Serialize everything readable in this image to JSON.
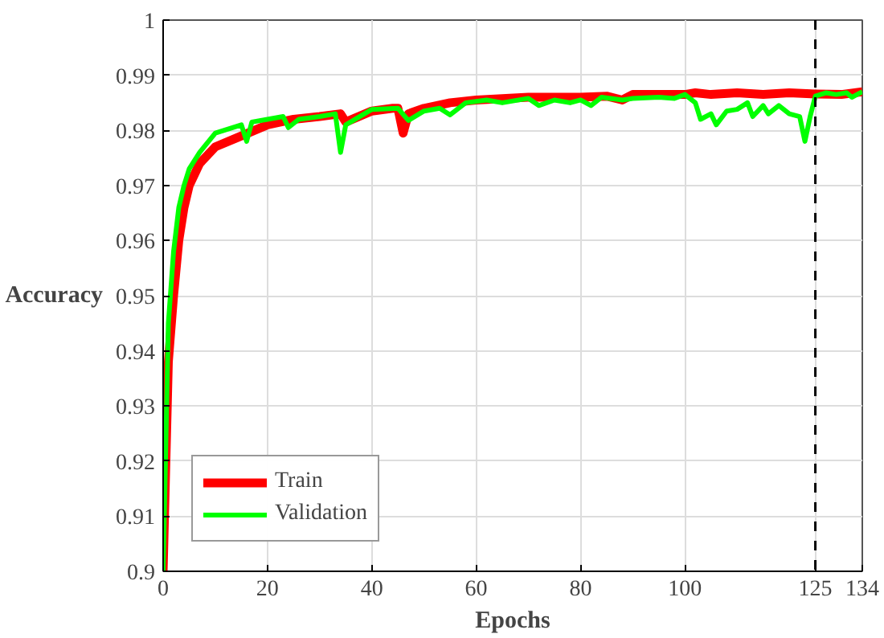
{
  "chart_data": {
    "type": "line",
    "xlabel": "Epochs",
    "ylabel": "Accuracy",
    "xlim": [
      0,
      134
    ],
    "xticks": [
      0,
      20,
      40,
      60,
      80,
      100,
      125,
      134
    ],
    "ylim": [
      0.9,
      1
    ],
    "yticks": [
      0.9,
      0.91,
      0.92,
      0.93,
      0.94,
      0.95,
      0.96,
      0.97,
      0.98,
      0.99,
      1
    ],
    "grid": true,
    "legend": "bottom left",
    "line_style": "solid",
    "ref_lines": [
      {
        "axis": "x",
        "value": 125,
        "color": "#000000",
        "line_style": "dashed"
      }
    ],
    "series": [
      {
        "name": "Train",
        "color": "#ff0000",
        "x": [
          0,
          1,
          2,
          3,
          4,
          5,
          7,
          10,
          15,
          20,
          25,
          30,
          34,
          35,
          40,
          44,
          45,
          46,
          47,
          50,
          55,
          60,
          70,
          80,
          85,
          88,
          90,
          100,
          102,
          105,
          110,
          115,
          120,
          125,
          130,
          134
        ],
        "values": [
          0.9,
          0.938,
          0.95,
          0.96,
          0.966,
          0.97,
          0.974,
          0.977,
          0.979,
          0.981,
          0.982,
          0.9825,
          0.983,
          0.9815,
          0.9835,
          0.984,
          0.984,
          0.9795,
          0.983,
          0.984,
          0.985,
          0.9855,
          0.986,
          0.986,
          0.9862,
          0.9855,
          0.9865,
          0.9865,
          0.9868,
          0.9865,
          0.9868,
          0.9865,
          0.9868,
          0.9866,
          0.9865,
          0.987
        ]
      },
      {
        "name": "Validation",
        "color": "#00ff00",
        "x": [
          0,
          1,
          2,
          3,
          4,
          5,
          7,
          10,
          15,
          16,
          17,
          20,
          23,
          24,
          26,
          30,
          33,
          34,
          35,
          40,
          45,
          47,
          50,
          53,
          55,
          58,
          62,
          65,
          70,
          72,
          75,
          78,
          80,
          82,
          84,
          88,
          90,
          95,
          98,
          100,
          102,
          103,
          105,
          106,
          108,
          110,
          112,
          113,
          115,
          116,
          118,
          120,
          122,
          123,
          124,
          125,
          127,
          129,
          131,
          132,
          134
        ],
        "values": [
          0.9,
          0.945,
          0.958,
          0.966,
          0.97,
          0.973,
          0.976,
          0.9795,
          0.981,
          0.978,
          0.9815,
          0.982,
          0.9825,
          0.9805,
          0.982,
          0.9825,
          0.983,
          0.976,
          0.981,
          0.9838,
          0.984,
          0.9818,
          0.9835,
          0.984,
          0.9828,
          0.985,
          0.9855,
          0.985,
          0.9858,
          0.9845,
          0.9855,
          0.985,
          0.9855,
          0.9845,
          0.986,
          0.9855,
          0.9858,
          0.986,
          0.9858,
          0.9865,
          0.985,
          0.982,
          0.983,
          0.981,
          0.9835,
          0.9838,
          0.985,
          0.9825,
          0.9845,
          0.983,
          0.9845,
          0.983,
          0.9825,
          0.978,
          0.9825,
          0.9862,
          0.9868,
          0.9865,
          0.9868,
          0.986,
          0.987
        ]
      }
    ]
  }
}
